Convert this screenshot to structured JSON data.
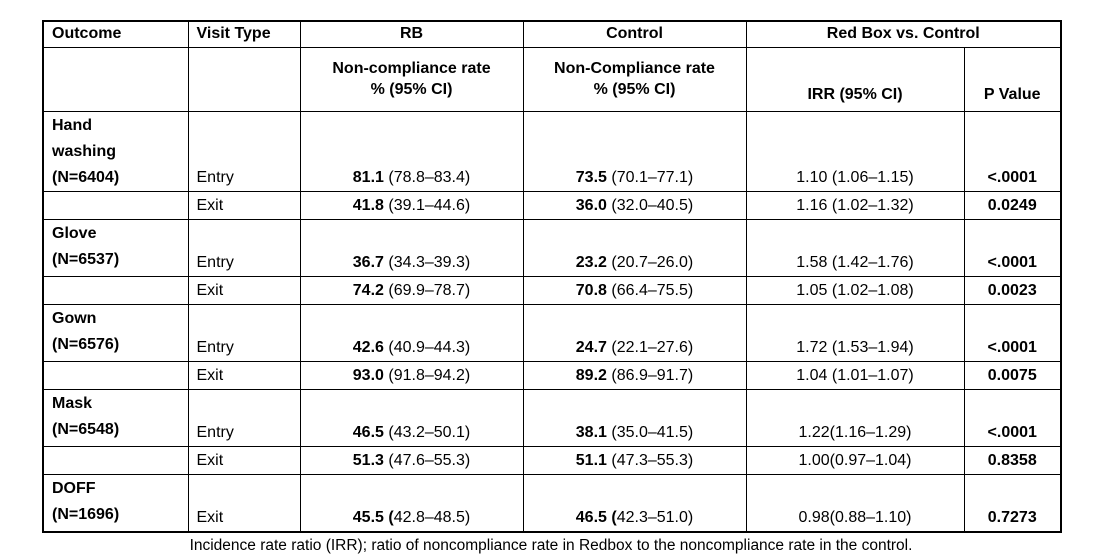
{
  "table": {
    "headers": {
      "outcome": "Outcome",
      "visit_type": "Visit Type",
      "rb": "RB",
      "control": "Control",
      "rb_vs_control": "Red Box vs. Control",
      "rb_sub": "Non-compliance rate\n% (95% CI)",
      "control_sub": "Non-Compliance rate\n% (95% CI)",
      "irr": "IRR (95% CI)",
      "p_value": "P Value"
    },
    "groups": [
      {
        "outcome": "Hand\nwashing\n(N=6404)",
        "rows": [
          {
            "visit": "Entry",
            "rb_rate": "81.1",
            "rb_ci": " (78.8–83.4)",
            "ctrl_rate": "73.5",
            "ctrl_ci": " (70.1–77.1)",
            "irr": "1.10 (1.06–1.15)",
            "p": "<.0001"
          },
          {
            "visit": "Exit",
            "rb_rate": "41.8",
            "rb_ci": " (39.1–44.6)",
            "ctrl_rate": "36.0",
            "ctrl_ci": " (32.0–40.5)",
            "irr": "1.16 (1.02–1.32)",
            "p": "0.0249"
          }
        ]
      },
      {
        "outcome": "Glove\n(N=6537)",
        "rows": [
          {
            "visit": "Entry",
            "rb_rate": "36.7",
            "rb_ci": " (34.3–39.3)",
            "ctrl_rate": "23.2",
            "ctrl_ci": " (20.7–26.0)",
            "irr": "1.58 (1.42–1.76)",
            "p": "<.0001"
          },
          {
            "visit": "Exit",
            "rb_rate": "74.2",
            "rb_ci": " (69.9–78.7)",
            "ctrl_rate": "70.8",
            "ctrl_ci": " (66.4–75.5)",
            "irr": "1.05 (1.02–1.08)",
            "p": "0.0023"
          }
        ]
      },
      {
        "outcome": "Gown\n(N=6576)",
        "rows": [
          {
            "visit": "Entry",
            "rb_rate": "42.6",
            "rb_ci": " (40.9–44.3)",
            "ctrl_rate": "24.7",
            "ctrl_ci": " (22.1–27.6)",
            "irr": "1.72 (1.53–1.94)",
            "p": "<.0001"
          },
          {
            "visit": "Exit",
            "rb_rate": "93.0",
            "rb_ci": " (91.8–94.2)",
            "ctrl_rate": "89.2",
            "ctrl_ci": " (86.9–91.7)",
            "irr": "1.04 (1.01–1.07)",
            "p": "0.0075"
          }
        ]
      },
      {
        "outcome": "Mask\n(N=6548)",
        "rows": [
          {
            "visit": "Entry",
            "rb_rate": "46.5",
            "rb_ci": " (43.2–50.1)",
            "ctrl_rate": "38.1",
            "ctrl_ci": " (35.0–41.5)",
            "irr": "1.22(1.16–1.29)",
            "p": "<.0001"
          },
          {
            "visit": "Exit",
            "rb_rate": "51.3",
            "rb_ci": " (47.6–55.3)",
            "ctrl_rate": "51.1",
            "ctrl_ci": " (47.3–55.3)",
            "irr": "1.00(0.97–1.04)",
            "p": "0.8358"
          }
        ]
      },
      {
        "outcome": "DOFF\n(N=1696)",
        "rows": [
          {
            "visit": "Exit",
            "rb_rate": "45.5 (",
            "rb_ci": "42.8–48.5)",
            "ctrl_rate": "46.5 (",
            "ctrl_ci": "42.3–51.0)",
            "irr": "0.98(0.88–1.10)",
            "p": "0.7273"
          }
        ]
      }
    ],
    "footnote": "Incidence rate ratio (IRR); ratio of noncompliance rate in Redbox to the noncompliance rate in the control."
  }
}
